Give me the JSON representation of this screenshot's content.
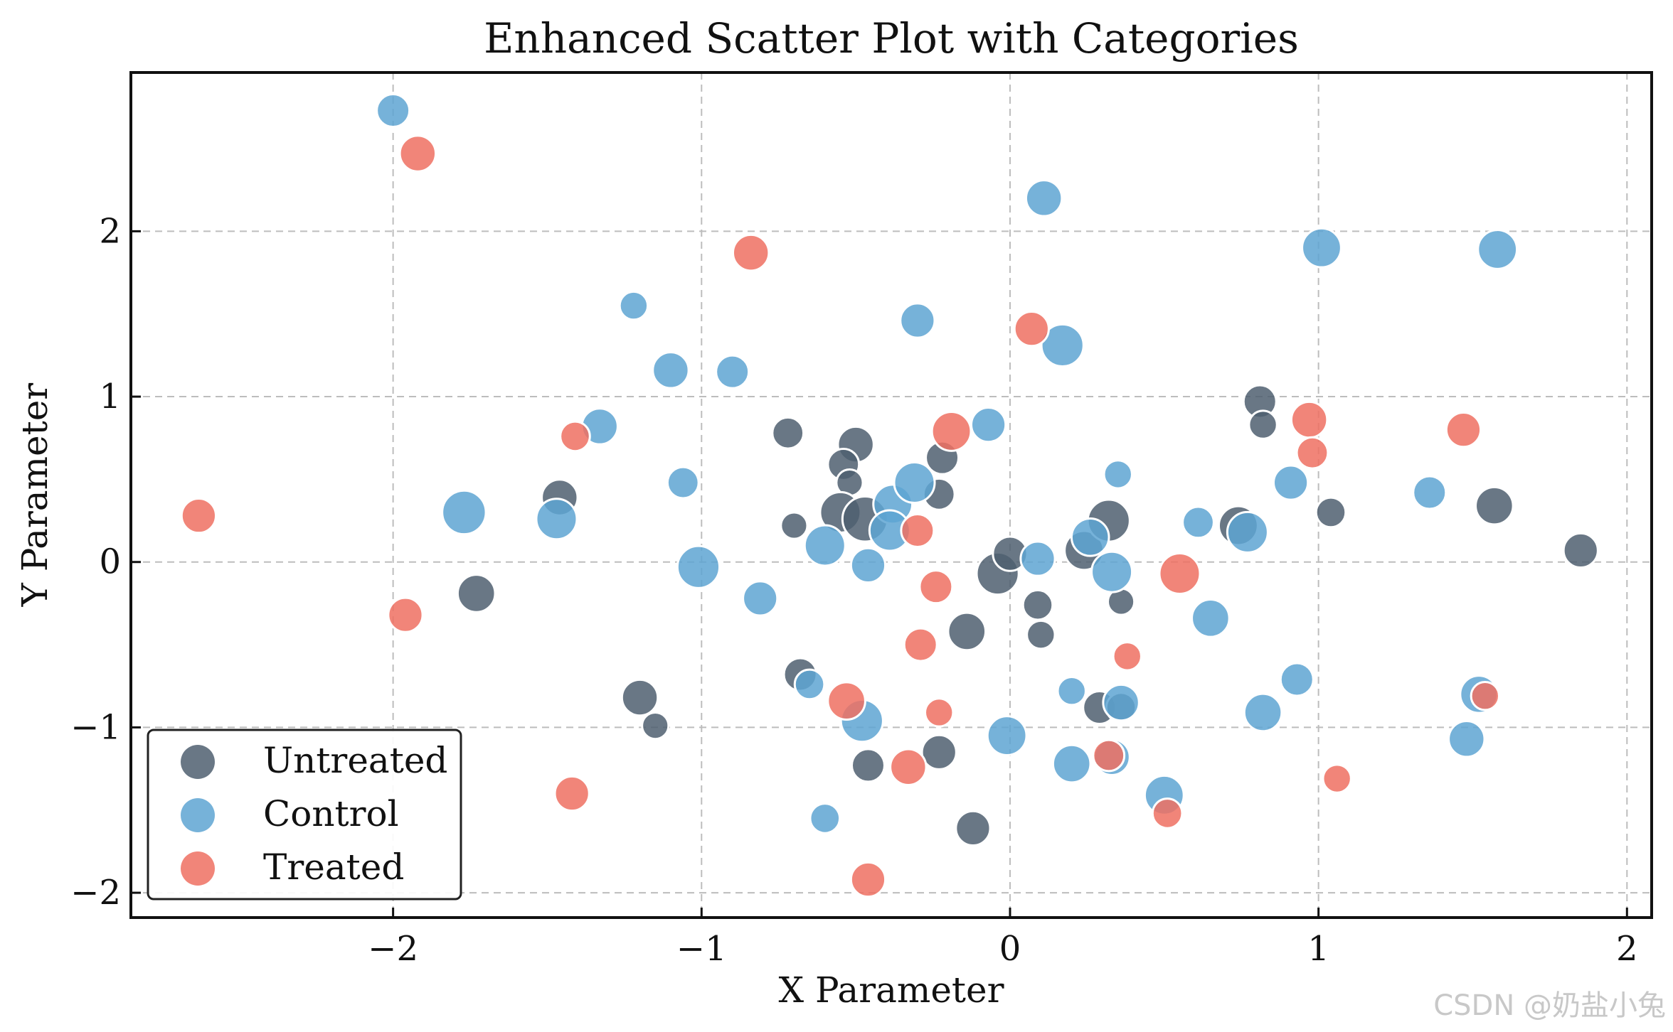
{
  "chart_data": {
    "type": "scatter",
    "title": "Enhanced Scatter Plot with Categories",
    "xlabel": "X Parameter",
    "ylabel": "Y Parameter",
    "xlim": [
      -2.85,
      2.08
    ],
    "ylim": [
      -2.15,
      2.96
    ],
    "x_ticks": [
      -2,
      -1,
      0,
      1,
      2
    ],
    "y_ticks": [
      -2,
      -1,
      0,
      1,
      2
    ],
    "x_tick_labels": [
      "−2",
      "−1",
      "0",
      "1",
      "2"
    ],
    "y_tick_labels": [
      "−2",
      "−1",
      "0",
      "1",
      "2"
    ],
    "grid": true,
    "legend_position": "lower-left",
    "series": [
      {
        "name": "Untreated",
        "color": "#4f5f70",
        "points": [
          {
            "x": -0.72,
            "y": 0.78,
            "s": 0.45
          },
          {
            "x": -0.5,
            "y": 0.71,
            "s": 0.6
          },
          {
            "x": -0.54,
            "y": 0.59,
            "s": 0.45
          },
          {
            "x": -0.52,
            "y": 0.48,
            "s": 0.3
          },
          {
            "x": -0.55,
            "y": 0.3,
            "s": 0.75
          },
          {
            "x": -0.47,
            "y": 0.26,
            "s": 0.9
          },
          {
            "x": -0.7,
            "y": 0.22,
            "s": 0.3
          },
          {
            "x": -0.22,
            "y": 0.63,
            "s": 0.5
          },
          {
            "x": -0.23,
            "y": 0.41,
            "s": 0.45
          },
          {
            "x": -1.46,
            "y": 0.39,
            "s": 0.6
          },
          {
            "x": -1.73,
            "y": -0.19,
            "s": 0.65
          },
          {
            "x": -1.2,
            "y": -0.82,
            "s": 0.6
          },
          {
            "x": -1.15,
            "y": -0.99,
            "s": 0.3
          },
          {
            "x": -0.68,
            "y": -0.68,
            "s": 0.5
          },
          {
            "x": -0.46,
            "y": -1.23,
            "s": 0.5
          },
          {
            "x": -0.23,
            "y": -1.15,
            "s": 0.55
          },
          {
            "x": -0.12,
            "y": -1.61,
            "s": 0.55
          },
          {
            "x": -0.14,
            "y": -0.42,
            "s": 0.65
          },
          {
            "x": -0.04,
            "y": -0.07,
            "s": 0.8
          },
          {
            "x": 0.0,
            "y": 0.05,
            "s": 0.55
          },
          {
            "x": 0.09,
            "y": -0.26,
            "s": 0.4
          },
          {
            "x": 0.1,
            "y": -0.44,
            "s": 0.35
          },
          {
            "x": 0.24,
            "y": 0.07,
            "s": 0.7
          },
          {
            "x": 0.32,
            "y": 0.25,
            "s": 0.8
          },
          {
            "x": 0.36,
            "y": -0.24,
            "s": 0.3
          },
          {
            "x": 0.29,
            "y": -0.88,
            "s": 0.5
          },
          {
            "x": 0.36,
            "y": -0.88,
            "s": 0.4
          },
          {
            "x": 0.74,
            "y": 0.22,
            "s": 0.7
          },
          {
            "x": 0.81,
            "y": 0.97,
            "s": 0.5
          },
          {
            "x": 0.82,
            "y": 0.83,
            "s": 0.35
          },
          {
            "x": 1.04,
            "y": 0.3,
            "s": 0.4
          },
          {
            "x": 1.57,
            "y": 0.34,
            "s": 0.65
          },
          {
            "x": 1.85,
            "y": 0.07,
            "s": 0.55
          }
        ]
      },
      {
        "name": "Control",
        "color": "#5ea5d2",
        "points": [
          {
            "x": -2.0,
            "y": 2.73,
            "s": 0.5
          },
          {
            "x": -1.22,
            "y": 1.55,
            "s": 0.35
          },
          {
            "x": -1.1,
            "y": 1.16,
            "s": 0.6
          },
          {
            "x": -0.9,
            "y": 1.15,
            "s": 0.5
          },
          {
            "x": -0.3,
            "y": 1.46,
            "s": 0.55
          },
          {
            "x": 0.11,
            "y": 2.2,
            "s": 0.6
          },
          {
            "x": 0.17,
            "y": 1.31,
            "s": 0.8
          },
          {
            "x": 1.01,
            "y": 1.9,
            "s": 0.7
          },
          {
            "x": 1.58,
            "y": 1.89,
            "s": 0.7
          },
          {
            "x": -1.33,
            "y": 0.82,
            "s": 0.6
          },
          {
            "x": -1.06,
            "y": 0.48,
            "s": 0.45
          },
          {
            "x": -1.77,
            "y": 0.3,
            "s": 0.85
          },
          {
            "x": -1.47,
            "y": 0.26,
            "s": 0.75
          },
          {
            "x": -1.01,
            "y": -0.03,
            "s": 0.8
          },
          {
            "x": -0.81,
            "y": -0.22,
            "s": 0.55
          },
          {
            "x": -0.6,
            "y": 0.1,
            "s": 0.75
          },
          {
            "x": -0.46,
            "y": -0.02,
            "s": 0.55
          },
          {
            "x": -0.38,
            "y": 0.35,
            "s": 0.7
          },
          {
            "x": -0.31,
            "y": 0.48,
            "s": 0.75
          },
          {
            "x": -0.39,
            "y": 0.19,
            "s": 0.75
          },
          {
            "x": -0.07,
            "y": 0.83,
            "s": 0.55
          },
          {
            "x": 0.09,
            "y": 0.02,
            "s": 0.55
          },
          {
            "x": 0.26,
            "y": 0.15,
            "s": 0.65
          },
          {
            "x": 0.33,
            "y": -0.06,
            "s": 0.75
          },
          {
            "x": 0.35,
            "y": 0.53,
            "s": 0.35
          },
          {
            "x": 0.61,
            "y": 0.24,
            "s": 0.45
          },
          {
            "x": 0.77,
            "y": 0.18,
            "s": 0.75
          },
          {
            "x": 0.91,
            "y": 0.48,
            "s": 0.55
          },
          {
            "x": 1.36,
            "y": 0.42,
            "s": 0.5
          },
          {
            "x": 0.65,
            "y": -0.34,
            "s": 0.65
          },
          {
            "x": -0.65,
            "y": -0.74,
            "s": 0.4
          },
          {
            "x": -0.48,
            "y": -0.96,
            "s": 0.8
          },
          {
            "x": -0.6,
            "y": -1.55,
            "s": 0.4
          },
          {
            "x": -0.01,
            "y": -1.05,
            "s": 0.7
          },
          {
            "x": 0.2,
            "y": -0.78,
            "s": 0.35
          },
          {
            "x": 0.36,
            "y": -0.85,
            "s": 0.6
          },
          {
            "x": 0.2,
            "y": -1.22,
            "s": 0.65
          },
          {
            "x": 0.33,
            "y": -1.18,
            "s": 0.6
          },
          {
            "x": 0.5,
            "y": -1.41,
            "s": 0.7
          },
          {
            "x": 0.82,
            "y": -0.91,
            "s": 0.65
          },
          {
            "x": 0.93,
            "y": -0.71,
            "s": 0.5
          },
          {
            "x": 1.52,
            "y": -0.8,
            "s": 0.65
          },
          {
            "x": 1.48,
            "y": -1.07,
            "s": 0.6
          }
        ]
      },
      {
        "name": "Treated",
        "color": "#ee7062",
        "points": [
          {
            "x": -1.92,
            "y": 2.47,
            "s": 0.6
          },
          {
            "x": -0.84,
            "y": 1.87,
            "s": 0.6
          },
          {
            "x": 0.07,
            "y": 1.41,
            "s": 0.55
          },
          {
            "x": -1.41,
            "y": 0.76,
            "s": 0.4
          },
          {
            "x": -0.19,
            "y": 0.79,
            "s": 0.7
          },
          {
            "x": -2.63,
            "y": 0.28,
            "s": 0.55
          },
          {
            "x": -0.3,
            "y": 0.19,
            "s": 0.5
          },
          {
            "x": -0.24,
            "y": -0.15,
            "s": 0.5
          },
          {
            "x": -0.29,
            "y": -0.5,
            "s": 0.5
          },
          {
            "x": -1.96,
            "y": -0.32,
            "s": 0.55
          },
          {
            "x": -0.53,
            "y": -0.84,
            "s": 0.65
          },
          {
            "x": -0.23,
            "y": -0.91,
            "s": 0.35
          },
          {
            "x": -0.33,
            "y": -1.24,
            "s": 0.6
          },
          {
            "x": -1.42,
            "y": -1.4,
            "s": 0.55
          },
          {
            "x": -0.46,
            "y": -1.92,
            "s": 0.55
          },
          {
            "x": 0.55,
            "y": -0.07,
            "s": 0.75
          },
          {
            "x": 0.38,
            "y": -0.57,
            "s": 0.35
          },
          {
            "x": 0.32,
            "y": -1.17,
            "s": 0.45
          },
          {
            "x": 0.51,
            "y": -1.52,
            "s": 0.4
          },
          {
            "x": 0.97,
            "y": 0.86,
            "s": 0.6
          },
          {
            "x": 0.98,
            "y": 0.66,
            "s": 0.45
          },
          {
            "x": 1.47,
            "y": 0.8,
            "s": 0.55
          },
          {
            "x": 1.54,
            "y": -0.81,
            "s": 0.35
          },
          {
            "x": 1.06,
            "y": -1.31,
            "s": 0.35
          }
        ]
      }
    ]
  },
  "watermark": "CSDN @奶盐小兔"
}
